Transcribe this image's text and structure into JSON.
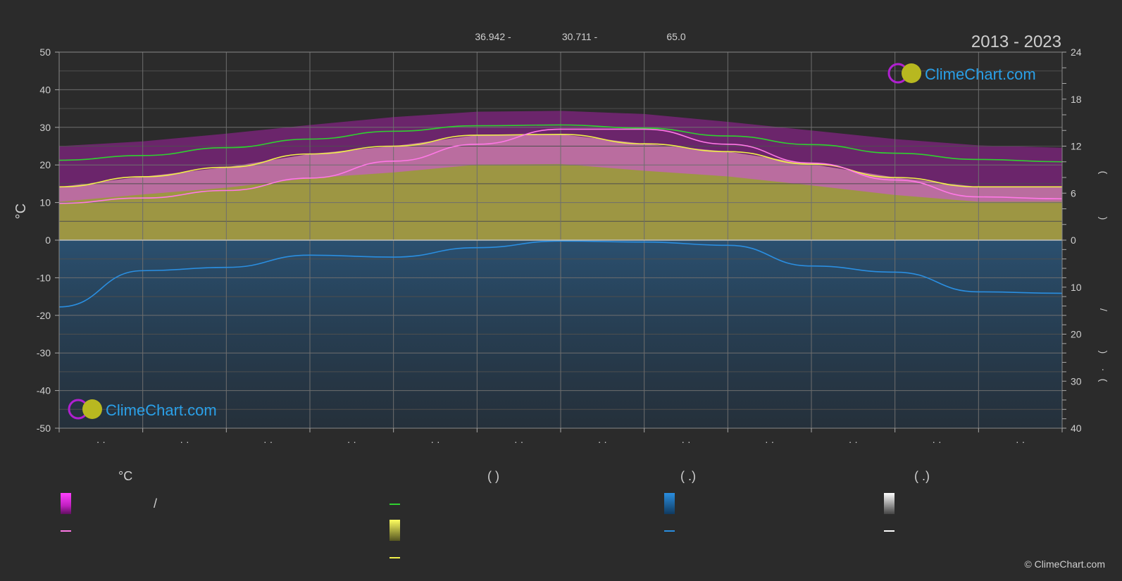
{
  "chart_data": {
    "type": "area",
    "period": "2013 - 2023",
    "header_values": [
      "36.942 -",
      "30.711 -",
      "65.0"
    ],
    "left_axis": {
      "label": "°C",
      "range": [
        -50,
        50
      ],
      "ticks": [
        50,
        40,
        30,
        20,
        10,
        0,
        -10,
        -20,
        -30,
        -40,
        -50
      ]
    },
    "right_axis_top": {
      "range": [
        0,
        24
      ],
      "ticks": [
        24,
        18,
        12,
        6,
        0
      ]
    },
    "right_axis_bottom": {
      "range": [
        0,
        40
      ],
      "ticks": [
        0,
        10,
        20,
        30,
        40
      ]
    },
    "right_axis_glyphs": [
      "(",
      ")",
      "/",
      ")",
      "·",
      "("
    ],
    "x_tick_label": "· ·",
    "x_months": 12,
    "grid": true,
    "series": [
      {
        "key": "daylight_hours",
        "color": "#30d030",
        "axis": "right_top",
        "values": [
          10.2,
          10.8,
          11.8,
          12.9,
          13.9,
          14.6,
          14.7,
          14.3,
          13.3,
          12.2,
          11.1,
          10.3,
          10.0
        ]
      },
      {
        "key": "sunshine_hours",
        "color": "#f0f04a",
        "axis": "right_top",
        "values": [
          6.8,
          8.1,
          9.3,
          11.0,
          12.0,
          13.4,
          13.5,
          12.3,
          11.3,
          9.7,
          8.0,
          6.8,
          6.8
        ]
      },
      {
        "key": "mean_temperature",
        "color": "#ff78e6",
        "axis": "left",
        "values": [
          9.8,
          11.2,
          13.2,
          16.5,
          21.0,
          25.5,
          29.5,
          29.5,
          25.5,
          20.5,
          16.0,
          11.5,
          11.0
        ]
      },
      {
        "key": "precipitation",
        "color": "#2a8ee0",
        "axis": "right_bottom",
        "values": [
          14.2,
          6.5,
          5.8,
          3.2,
          3.6,
          1.6,
          0.2,
          0.4,
          1.1,
          5.5,
          6.8,
          11.0,
          11.3
        ]
      }
    ]
  },
  "legend": {
    "col1_header": "°C",
    "col1_item1_sep": "/",
    "col2_header": "(          )",
    "col3_header": "(   .)",
    "col4_header": "(   .)"
  },
  "branding": {
    "text": "ClimeChart.com"
  },
  "copyright": "© ClimeChart.com",
  "colors": {
    "background": "#2b2b2b",
    "temp_range": "#cc00cc",
    "temp_mean": "#ff78e6",
    "daylight": "#30d030",
    "sunshine_fill": "#bcbc30",
    "sunshine_line": "#f0f04a",
    "precip": "#2a8ee0",
    "snow": "#ffffff"
  }
}
